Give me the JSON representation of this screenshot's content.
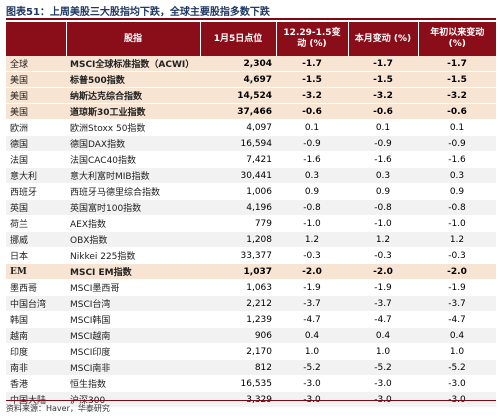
{
  "title": "图表51：上周美股三大股指均下跌，全球主要股指多数下跌",
  "headers": [
    "",
    "股指",
    "1月5日点位",
    "12.29-1.5变动 (%)",
    "本月变动 (%)",
    "年初以来变动 (%)"
  ],
  "rows": [
    {
      "region": "全球",
      "index": "MSCI全球标准指数（ACWI）",
      "level": "2,304",
      "week": "-1.7",
      "month": "-1.7",
      "ytd": "-1.7",
      "style": "hl"
    },
    {
      "region": "美国",
      "index": "标普500指数",
      "level": "4,697",
      "week": "-1.5",
      "month": "-1.5",
      "ytd": "-1.5",
      "style": "hl"
    },
    {
      "region": "美国",
      "index": "纳斯达克综合指数",
      "level": "14,524",
      "week": "-3.2",
      "month": "-3.2",
      "ytd": "-3.2",
      "style": "hl"
    },
    {
      "region": "美国",
      "index": "道琼斯30工业指数",
      "level": "37,466",
      "week": "-0.6",
      "month": "-0.6",
      "ytd": "-0.6",
      "style": "hl"
    },
    {
      "region": "欧洲",
      "index": "欧洲Stoxx 50指数",
      "level": "4,097",
      "week": "0.1",
      "month": "0.1",
      "ytd": "0.1",
      "style": "even"
    },
    {
      "region": "德国",
      "index": "德国DAX指数",
      "level": "16,594",
      "week": "-0.9",
      "month": "-0.9",
      "ytd": "-0.9",
      "style": "odd"
    },
    {
      "region": "法国",
      "index": "法国CAC40指数",
      "level": "7,421",
      "week": "-1.6",
      "month": "-1.6",
      "ytd": "-1.6",
      "style": "even"
    },
    {
      "region": "意大利",
      "index": "意大利富时MIB指数",
      "level": "30,441",
      "week": "0.3",
      "month": "0.3",
      "ytd": "0.3",
      "style": "odd"
    },
    {
      "region": "西班牙",
      "index": "西班牙马德里综合指数",
      "level": "1,006",
      "week": "0.9",
      "month": "0.9",
      "ytd": "0.9",
      "style": "even"
    },
    {
      "region": "英国",
      "index": "英国富时100指数",
      "level": "4,196",
      "week": "-0.8",
      "month": "-0.8",
      "ytd": "-0.8",
      "style": "odd"
    },
    {
      "region": "荷兰",
      "index": "AEX指数",
      "level": "779",
      "week": "-1.0",
      "month": "-1.0",
      "ytd": "-1.0",
      "style": "even"
    },
    {
      "region": "挪威",
      "index": "OBX指数",
      "level": "1,208",
      "week": "1.2",
      "month": "1.2",
      "ytd": "1.2",
      "style": "odd"
    },
    {
      "region": "日本",
      "index": "Nikkei 225指数",
      "level": "33,377",
      "week": "-0.3",
      "month": "-0.3",
      "ytd": "-0.3",
      "style": "even"
    },
    {
      "region": "EM",
      "index": "MSCI EM指数",
      "level": "1,037",
      "week": "-2.0",
      "month": "-2.0",
      "ytd": "-2.0",
      "style": "group"
    },
    {
      "region": "墨西哥",
      "index": "MSCI墨西哥",
      "level": "1,063",
      "week": "-1.9",
      "month": "-1.9",
      "ytd": "-1.9",
      "style": "even"
    },
    {
      "region": "中国台湾",
      "index": "MSCI台湾",
      "level": "2,212",
      "week": "-3.7",
      "month": "-3.7",
      "ytd": "-3.7",
      "style": "odd"
    },
    {
      "region": "韩国",
      "index": "MSCI韩国",
      "level": "1,239",
      "week": "-4.7",
      "month": "-4.7",
      "ytd": "-4.7",
      "style": "even"
    },
    {
      "region": "越南",
      "index": "MSCI越南",
      "level": "906",
      "week": "0.4",
      "month": "0.4",
      "ytd": "0.4",
      "style": "odd"
    },
    {
      "region": "印度",
      "index": "MSCI印度",
      "level": "2,170",
      "week": "1.0",
      "month": "1.0",
      "ytd": "1.0",
      "style": "even"
    },
    {
      "region": "南非",
      "index": "MSCI南非",
      "level": "812",
      "week": "-5.2",
      "month": "-5.2",
      "ytd": "-5.2",
      "style": "odd"
    },
    {
      "region": "香港",
      "index": "恒生指数",
      "level": "16,535",
      "week": "-3.0",
      "month": "-3.0",
      "ytd": "-3.0",
      "style": "even"
    },
    {
      "region": "中国大陆",
      "index": "沪深300",
      "level": "3,329",
      "week": "-3.0",
      "month": "-3.0",
      "ytd": "-3.0",
      "style": "odd"
    }
  ],
  "footer": "资料来源：Haver，华泰研究"
}
